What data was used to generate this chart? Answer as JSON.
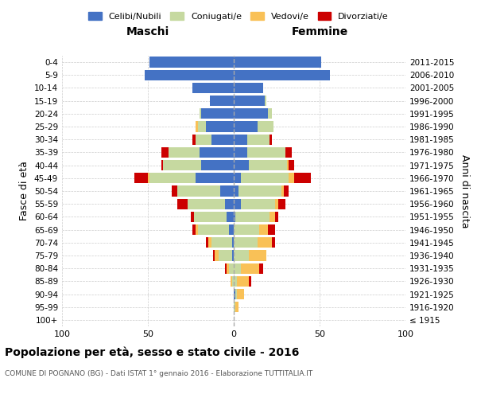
{
  "age_groups": [
    "100+",
    "95-99",
    "90-94",
    "85-89",
    "80-84",
    "75-79",
    "70-74",
    "65-69",
    "60-64",
    "55-59",
    "50-54",
    "45-49",
    "40-44",
    "35-39",
    "30-34",
    "25-29",
    "20-24",
    "15-19",
    "10-14",
    "5-9",
    "0-4"
  ],
  "birth_years": [
    "≤ 1915",
    "1916-1920",
    "1921-1925",
    "1926-1930",
    "1931-1935",
    "1936-1940",
    "1941-1945",
    "1946-1950",
    "1951-1955",
    "1956-1960",
    "1961-1965",
    "1966-1970",
    "1971-1975",
    "1976-1980",
    "1981-1985",
    "1986-1990",
    "1991-1995",
    "1996-2000",
    "2001-2005",
    "2006-2010",
    "2011-2015"
  ],
  "maschi": {
    "celibi": [
      0,
      0,
      0,
      0,
      0,
      1,
      1,
      3,
      4,
      5,
      8,
      22,
      19,
      20,
      13,
      16,
      19,
      14,
      24,
      52,
      49
    ],
    "coniugati": [
      0,
      0,
      0,
      1,
      3,
      8,
      12,
      18,
      19,
      22,
      25,
      27,
      22,
      18,
      9,
      5,
      1,
      0,
      0,
      0,
      0
    ],
    "vedovi": [
      0,
      0,
      0,
      1,
      1,
      2,
      2,
      1,
      0,
      0,
      0,
      1,
      0,
      0,
      0,
      1,
      0,
      0,
      0,
      0,
      0
    ],
    "divorziati": [
      0,
      0,
      0,
      0,
      1,
      1,
      1,
      2,
      2,
      6,
      3,
      8,
      1,
      4,
      2,
      0,
      0,
      0,
      0,
      0,
      0
    ]
  },
  "femmine": {
    "nubili": [
      0,
      0,
      1,
      0,
      0,
      0,
      0,
      0,
      1,
      4,
      3,
      4,
      9,
      8,
      8,
      14,
      20,
      18,
      17,
      56,
      51
    ],
    "coniugate": [
      0,
      1,
      1,
      2,
      4,
      9,
      14,
      15,
      20,
      20,
      25,
      28,
      22,
      22,
      13,
      9,
      2,
      1,
      0,
      0,
      0
    ],
    "vedove": [
      0,
      2,
      4,
      7,
      11,
      10,
      8,
      5,
      3,
      2,
      1,
      3,
      1,
      0,
      0,
      0,
      0,
      0,
      0,
      0,
      0
    ],
    "divorziate": [
      0,
      0,
      0,
      1,
      2,
      0,
      2,
      4,
      2,
      4,
      3,
      10,
      3,
      4,
      1,
      0,
      0,
      0,
      0,
      0,
      0
    ]
  },
  "colors": {
    "celibi": "#4472c4",
    "coniugati": "#c6d9a0",
    "vedovi": "#f9c157",
    "divorziati": "#cc0000"
  },
  "xlim": 100,
  "title": "Popolazione per età, sesso e stato civile - 2016",
  "subtitle": "COMUNE DI POGNANO (BG) - Dati ISTAT 1° gennaio 2016 - Elaborazione TUTTITALIA.IT",
  "ylabel_left": "Fasce di età",
  "ylabel_right": "Anni di nascita",
  "xlabel_maschi": "Maschi",
  "xlabel_femmine": "Femmine",
  "legend_labels": [
    "Celibi/Nubili",
    "Coniugati/e",
    "Vedovi/e",
    "Divorziati/e"
  ],
  "bg_color": "#ffffff",
  "grid_color": "#cccccc"
}
